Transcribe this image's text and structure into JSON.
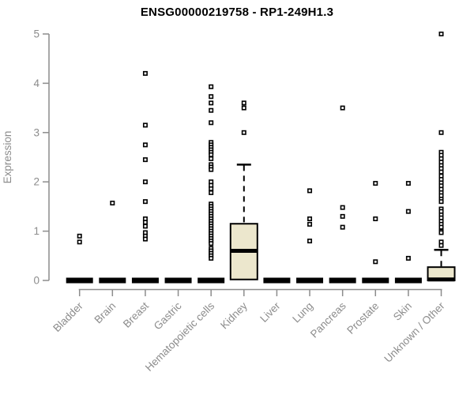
{
  "chart_data": {
    "type": "boxplot",
    "title": "ENSG00000219758 - RP1-249H1.3",
    "ylabel": "Expression",
    "xlabel": "",
    "ylim": [
      0,
      5
    ],
    "yticks": [
      0,
      1,
      2,
      3,
      4,
      5
    ],
    "grid": false,
    "legend": "none",
    "marker": "open-square",
    "groups": [
      {
        "label": "Bladder",
        "box": {
          "q1": 0,
          "median": 0,
          "q3": 0,
          "whisker_low": 0,
          "whisker_high": 0
        },
        "points": [
          0.9,
          0.78
        ]
      },
      {
        "label": "Brain",
        "box": {
          "q1": 0,
          "median": 0,
          "q3": 0,
          "whisker_low": 0,
          "whisker_high": 0
        },
        "points": [
          1.57
        ]
      },
      {
        "label": "Breast",
        "box": {
          "q1": 0,
          "median": 0,
          "q3": 0,
          "whisker_low": 0,
          "whisker_high": 0
        },
        "points": [
          4.2,
          3.15,
          2.75,
          2.45,
          2.0,
          1.6,
          1.25,
          1.18,
          1.1,
          0.97,
          0.9,
          0.84
        ]
      },
      {
        "label": "Gastric",
        "box": {
          "q1": 0,
          "median": 0,
          "q3": 0,
          "whisker_low": 0,
          "whisker_high": 0
        },
        "points": []
      },
      {
        "label": "Hematopoietic cells",
        "box": {
          "q1": 0,
          "median": 0,
          "q3": 0,
          "whisker_low": 0,
          "whisker_high": 0
        },
        "points": [
          3.93,
          3.73,
          3.6,
          3.45,
          3.2,
          2.8,
          2.75,
          2.7,
          2.65,
          2.6,
          2.55,
          2.47,
          2.35,
          2.3,
          2.25,
          2.0,
          1.93,
          1.86,
          1.78,
          1.55,
          1.5,
          1.45,
          1.4,
          1.35,
          1.3,
          1.25,
          1.2,
          1.15,
          1.1,
          1.05,
          1.0,
          0.95,
          0.9,
          0.85,
          0.8,
          0.75,
          0.65,
          0.6,
          0.55,
          0.5,
          0.45
        ]
      },
      {
        "label": "Kidney",
        "box": {
          "q1": 0.02,
          "median": 0.6,
          "q3": 1.15,
          "whisker_low": 0.02,
          "whisker_high": 2.35
        },
        "points": [
          3.6,
          3.5,
          3.0
        ]
      },
      {
        "label": "Liver",
        "box": {
          "q1": 0,
          "median": 0,
          "q3": 0,
          "whisker_low": 0,
          "whisker_high": 0
        },
        "points": []
      },
      {
        "label": "Lung",
        "box": {
          "q1": 0,
          "median": 0,
          "q3": 0,
          "whisker_low": 0,
          "whisker_high": 0
        },
        "points": [
          1.82,
          1.25,
          1.14,
          0.8
        ]
      },
      {
        "label": "Pancreas",
        "box": {
          "q1": 0,
          "median": 0,
          "q3": 0,
          "whisker_low": 0,
          "whisker_high": 0
        },
        "points": [
          3.5,
          1.48,
          1.3,
          1.08
        ]
      },
      {
        "label": "Prostate",
        "box": {
          "q1": 0,
          "median": 0,
          "q3": 0,
          "whisker_low": 0,
          "whisker_high": 0
        },
        "points": [
          1.97,
          1.25,
          0.38
        ]
      },
      {
        "label": "Skin",
        "box": {
          "q1": 0,
          "median": 0,
          "q3": 0,
          "whisker_low": 0,
          "whisker_high": 0
        },
        "points": [
          1.97,
          1.4,
          0.45
        ]
      },
      {
        "label": "Unknown / Other",
        "box": {
          "q1": 0,
          "median": 0.02,
          "q3": 0.27,
          "whisker_low": 0,
          "whisker_high": 0.62
        },
        "points": [
          5.0,
          3.0,
          2.6,
          2.54,
          2.47,
          2.4,
          2.33,
          2.27,
          2.2,
          2.12,
          2.05,
          1.98,
          1.92,
          1.85,
          1.78,
          1.72,
          1.65,
          1.6,
          1.45,
          1.4,
          1.33,
          1.27,
          1.2,
          1.14,
          1.08,
          1.0,
          0.97,
          0.78,
          0.71
        ]
      }
    ],
    "colors": {
      "box_fill": "#ece7cd",
      "box_stroke": "#000000",
      "median": "#000000",
      "point": "#000000",
      "axis": "#8c8c8c",
      "tick_label": "#8c8c8c",
      "title": "#000000"
    }
  }
}
